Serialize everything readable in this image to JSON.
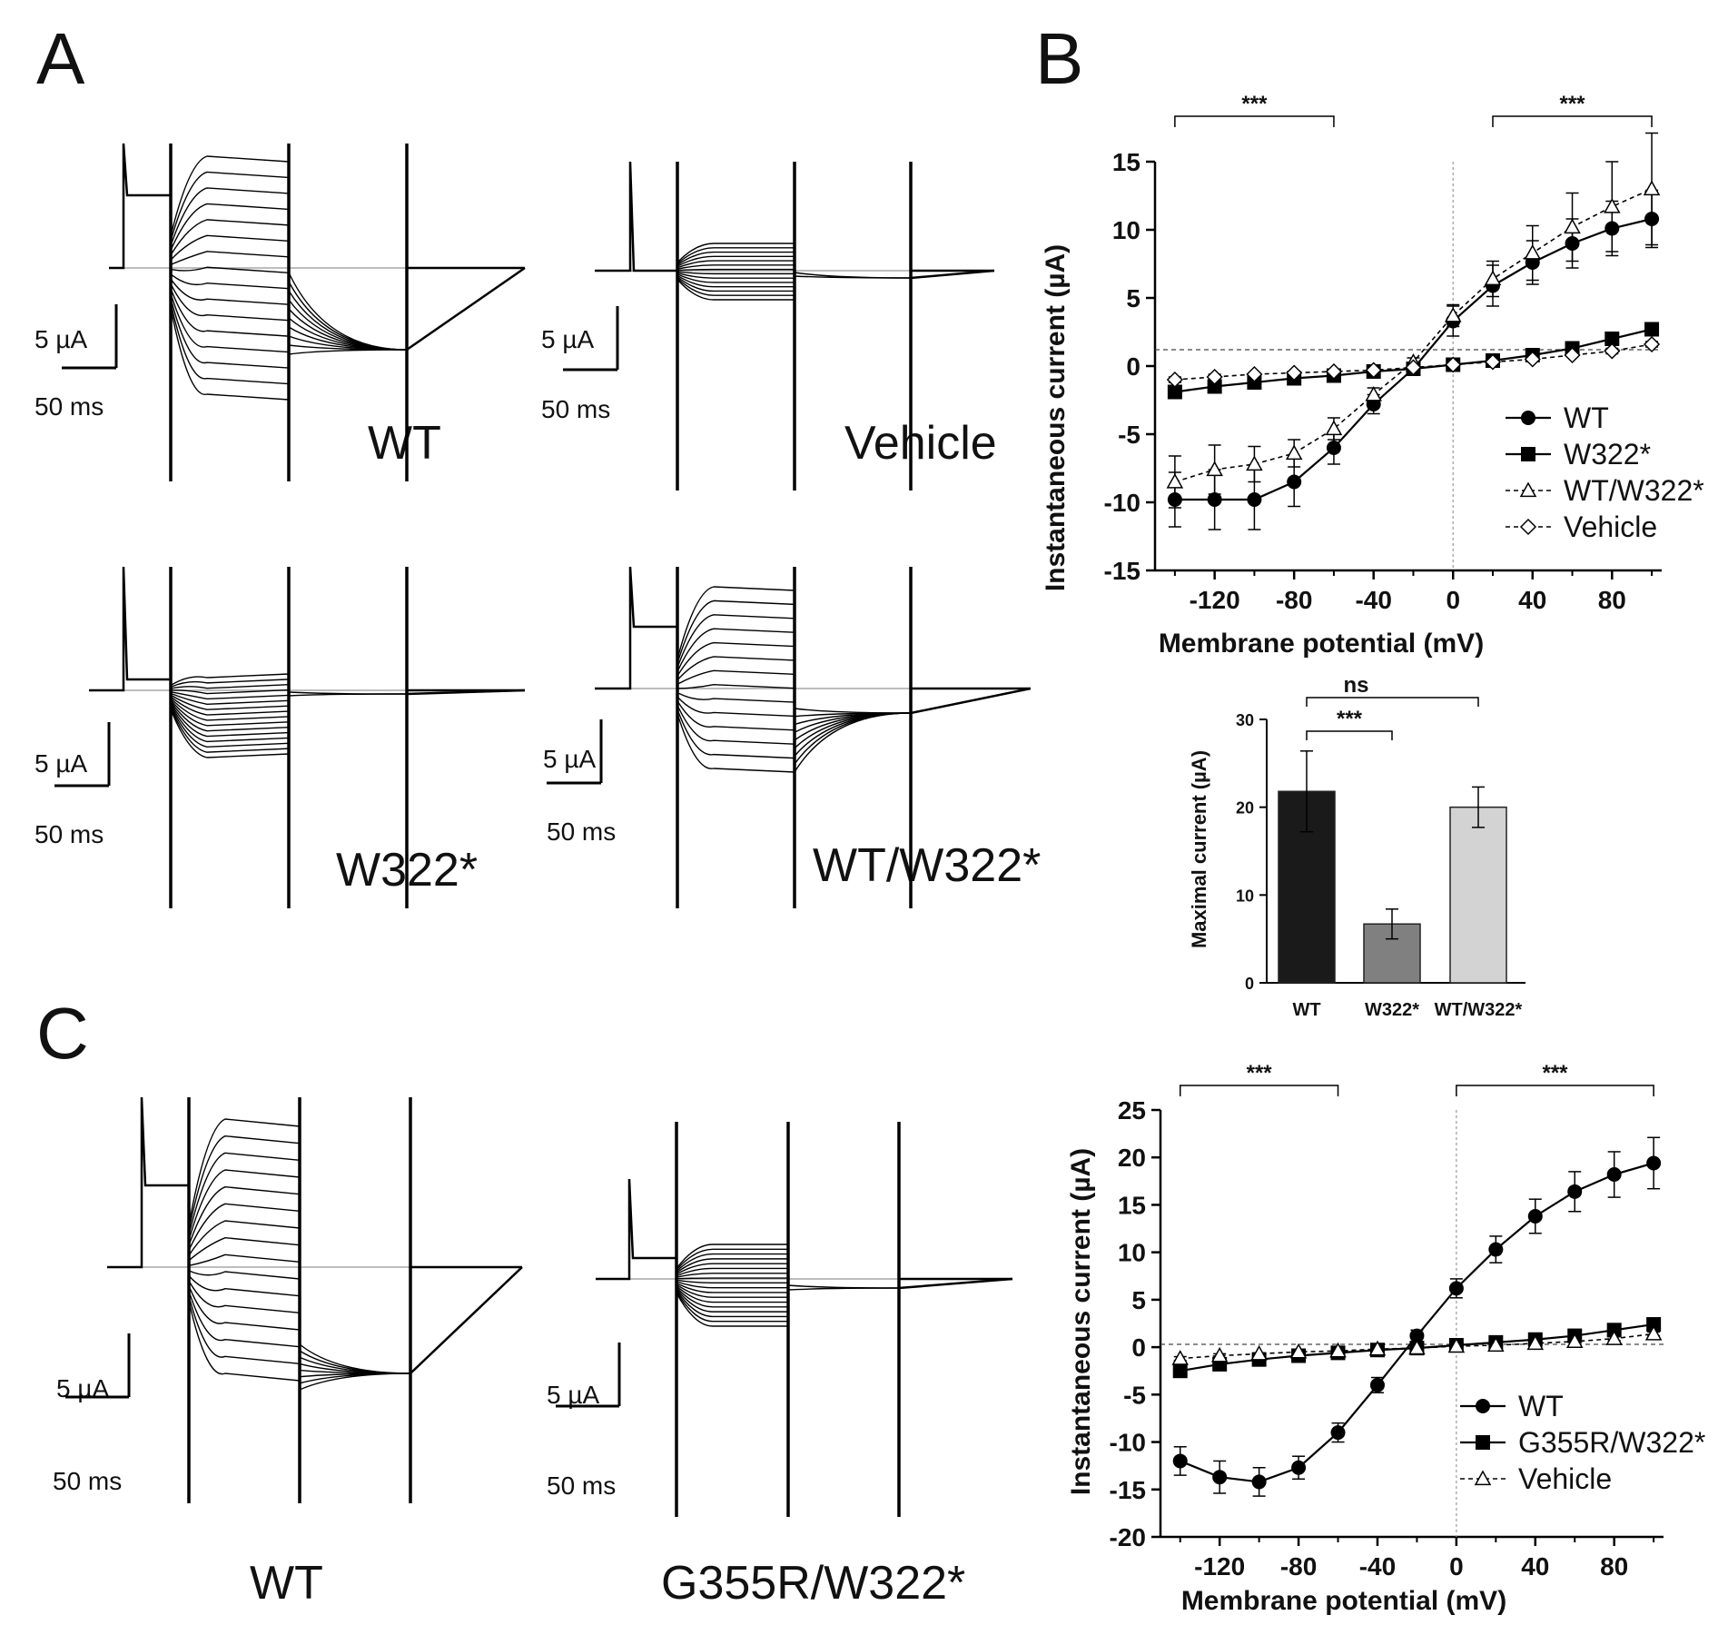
{
  "figure": {
    "panel_letters": [
      "A",
      "B",
      "C"
    ],
    "traces_A": [
      {
        "name": "WT",
        "scale_current": "5 µA",
        "scale_time": "50 ms"
      },
      {
        "name": "Vehicle",
        "scale_current": "5 µA",
        "scale_time": "50 ms"
      },
      {
        "name": "W322*",
        "scale_current": "5 µA",
        "scale_time": "50 ms"
      },
      {
        "name": "WT/W322*",
        "scale_current": "5 µA",
        "scale_time": "50 ms"
      }
    ],
    "traces_C": [
      {
        "name": "WT",
        "scale_current": "5 µA",
        "scale_time": "50 ms"
      },
      {
        "name": "G355R/W322*",
        "scale_current": "5 µA",
        "scale_time": "50 ms"
      }
    ],
    "colors": {
      "trace": "#000000",
      "baseline": "#bdbdbd",
      "bar_WT": "#1a1a1a",
      "bar_W322": "#808080",
      "bar_WTW322": "#d3d3d3"
    }
  },
  "chart_data": [
    {
      "panel": "B",
      "type": "line",
      "xlabel": "Membrane potential (mV)",
      "ylabel": "Instantaneous current (µA)",
      "xlim": [
        -150,
        105
      ],
      "ylim": [
        -15,
        17
      ],
      "xticks": [
        -120,
        -80,
        -40,
        0,
        40,
        80
      ],
      "yticks": [
        -15,
        -10,
        -5,
        0,
        5,
        10,
        15
      ],
      "legend_position": "bottom-right",
      "x": [
        -140,
        -120,
        -100,
        -80,
        -60,
        -40,
        -20,
        0,
        20,
        40,
        60,
        80,
        100
      ],
      "series": [
        {
          "name": "WT",
          "marker": "filled-circle",
          "line": "solid",
          "values": [
            -9.8,
            -9.8,
            -9.8,
            -8.5,
            -6.0,
            -2.8,
            -0.2,
            3.3,
            5.9,
            7.6,
            9.0,
            10.1,
            10.8
          ],
          "errors": [
            2.0,
            2.2,
            2.2,
            1.8,
            1.2,
            0.7,
            0.3,
            1.1,
            1.5,
            1.6,
            1.8,
            2.0,
            2.1
          ]
        },
        {
          "name": "W322*",
          "marker": "filled-square",
          "line": "solid",
          "values": [
            -1.9,
            -1.5,
            -1.2,
            -0.9,
            -0.7,
            -0.4,
            -0.2,
            0.1,
            0.4,
            0.8,
            1.3,
            2.0,
            2.7
          ],
          "errors": [
            0.3,
            0.3,
            0.2,
            0.2,
            0.2,
            0.1,
            0.1,
            0.1,
            0.1,
            0.2,
            0.2,
            0.3,
            0.4
          ]
        },
        {
          "name": "WT/W322*",
          "marker": "open-triangle",
          "line": "dashed",
          "values": [
            -8.5,
            -7.6,
            -7.2,
            -6.4,
            -4.6,
            -2.1,
            0.3,
            3.7,
            6.4,
            8.3,
            10.2,
            11.7,
            13.0
          ],
          "errors": [
            1.9,
            1.8,
            1.3,
            1.0,
            0.8,
            0.5,
            0.3,
            0.8,
            1.3,
            2.0,
            2.5,
            3.3,
            4.1
          ]
        },
        {
          "name": "Vehicle",
          "marker": "open-diamond",
          "line": "dashed",
          "values": [
            -1.0,
            -0.8,
            -0.6,
            -0.5,
            -0.4,
            -0.3,
            -0.1,
            0.1,
            0.3,
            0.5,
            0.8,
            1.1,
            1.6
          ],
          "errors": [
            0.2,
            0.2,
            0.1,
            0.1,
            0.1,
            0.1,
            0.1,
            0.1,
            0.1,
            0.1,
            0.1,
            0.2,
            0.2
          ]
        }
      ],
      "reference_line_y": 1.2,
      "significance": [
        {
          "from": -140,
          "to": -60,
          "label": "***"
        },
        {
          "from": 20,
          "to": 100,
          "label": "***"
        }
      ]
    },
    {
      "panel": "B-inset",
      "type": "bar",
      "ylabel": "Maximal current (µA)",
      "ylim": [
        0,
        30
      ],
      "yticks": [
        0,
        10,
        20,
        30
      ],
      "categories": [
        "WT",
        "W322*",
        "WT/W322*"
      ],
      "values": [
        21.8,
        6.7,
        20.0
      ],
      "errors": [
        4.6,
        1.7,
        2.3
      ],
      "significance": [
        {
          "from": "WT",
          "to": "W322*",
          "label": "***"
        },
        {
          "from": "WT",
          "to": "WT/W322*",
          "label": "ns"
        }
      ]
    },
    {
      "panel": "C",
      "type": "line",
      "xlabel": "Membrane potential (mV)",
      "ylabel": "Instantaneous current (µA)",
      "xlim": [
        -150,
        105
      ],
      "ylim": [
        -20,
        25
      ],
      "xticks": [
        -120,
        -80,
        -40,
        0,
        40,
        80
      ],
      "yticks": [
        -20,
        -15,
        -10,
        -5,
        0,
        5,
        10,
        15,
        20,
        25
      ],
      "legend_position": "bottom-right",
      "x": [
        -140,
        -120,
        -100,
        -80,
        -60,
        -40,
        -20,
        0,
        20,
        40,
        60,
        80,
        100
      ],
      "series": [
        {
          "name": "WT",
          "marker": "filled-circle",
          "line": "solid",
          "values": [
            -12.0,
            -13.7,
            -14.2,
            -12.7,
            -9.0,
            -4.0,
            1.2,
            6.2,
            10.3,
            13.8,
            16.4,
            18.2,
            19.4
          ],
          "errors": [
            1.5,
            1.7,
            1.5,
            1.2,
            1.0,
            0.8,
            0.6,
            1.0,
            1.4,
            1.8,
            2.1,
            2.4,
            2.7
          ]
        },
        {
          "name": "G355R/W322*",
          "marker": "filled-square",
          "line": "solid",
          "values": [
            -2.5,
            -1.8,
            -1.3,
            -0.9,
            -0.6,
            -0.3,
            -0.1,
            0.2,
            0.5,
            0.8,
            1.2,
            1.8,
            2.4
          ],
          "errors": [
            0.4,
            0.3,
            0.3,
            0.2,
            0.2,
            0.1,
            0.1,
            0.1,
            0.1,
            0.2,
            0.2,
            0.3,
            0.4
          ]
        },
        {
          "name": "Vehicle",
          "marker": "open-triangle",
          "line": "dashed",
          "values": [
            -1.2,
            -0.9,
            -0.7,
            -0.5,
            -0.4,
            -0.2,
            -0.1,
            0.1,
            0.2,
            0.4,
            0.6,
            0.9,
            1.4
          ],
          "errors": [
            0.2,
            0.2,
            0.1,
            0.1,
            0.1,
            0.1,
            0.1,
            0.1,
            0.1,
            0.1,
            0.1,
            0.2,
            0.2
          ]
        }
      ],
      "reference_line_y": 0.3,
      "significance": [
        {
          "from": -140,
          "to": -60,
          "label": "***"
        },
        {
          "from": 0,
          "to": 100,
          "label": "***"
        }
      ]
    }
  ]
}
